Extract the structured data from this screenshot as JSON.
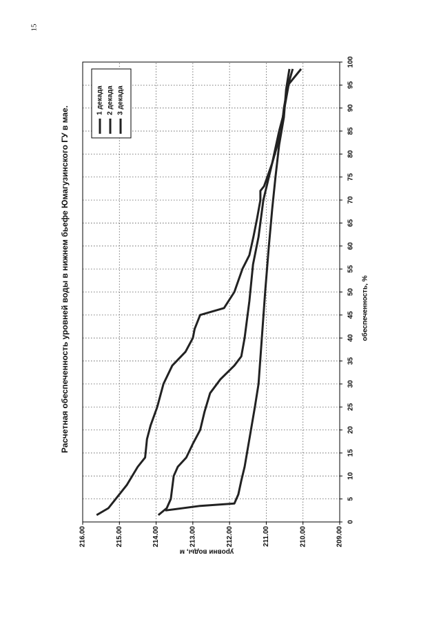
{
  "page_number": "15",
  "chart_data": {
    "type": "line",
    "title": "Расчетная обеспеченность уровней воды в нижнем бьефе Юмагузинского ГУ в мае.",
    "x_label": "обеспеченность, %",
    "y_label": "уровни воды, м",
    "xlim": [
      0,
      100
    ],
    "xticks": [
      0,
      5,
      10,
      15,
      20,
      25,
      30,
      35,
      40,
      45,
      50,
      55,
      60,
      65,
      70,
      75,
      80,
      85,
      90,
      95,
      100
    ],
    "ylim": [
      209,
      216
    ],
    "yticks": [
      {
        "value": 209,
        "label": "209.00"
      },
      {
        "value": 210,
        "label": "210.00"
      },
      {
        "value": 211,
        "label": "211.00"
      },
      {
        "value": 212,
        "label": "212.00"
      },
      {
        "value": 213,
        "label": "213.00"
      },
      {
        "value": 214,
        "label": "214.00"
      },
      {
        "value": 215,
        "label": "215.00"
      },
      {
        "value": 216,
        "label": "216.00"
      }
    ],
    "grid": true,
    "legend": "upper right",
    "series": [
      {
        "name": "1 декада",
        "color": "#222222",
        "x": [
          1.5,
          3,
          5,
          8,
          12,
          14,
          18,
          21,
          25,
          30,
          34,
          37,
          40,
          42,
          45,
          46.5,
          50,
          55,
          58,
          62,
          66,
          70,
          72,
          73,
          78,
          85,
          88,
          92,
          96,
          98.5
        ],
        "values": [
          215.62,
          215.3,
          215.1,
          214.8,
          214.5,
          214.3,
          214.25,
          214.15,
          213.97,
          213.8,
          213.56,
          213.2,
          213.0,
          212.95,
          212.8,
          212.15,
          211.87,
          211.65,
          211.46,
          211.35,
          211.25,
          211.16,
          211.16,
          211.06,
          210.84,
          210.65,
          210.55,
          210.46,
          210.37,
          210.28
        ]
      },
      {
        "name": "2 декада",
        "color": "#222222",
        "x": [
          1.5,
          3,
          5,
          10,
          12,
          14,
          17,
          20,
          24,
          28,
          31,
          34,
          36,
          40,
          48,
          56,
          62,
          70,
          78,
          85,
          90,
          95,
          98.5
        ],
        "values": [
          213.94,
          213.71,
          213.6,
          213.52,
          213.41,
          213.18,
          213.0,
          212.8,
          212.68,
          212.53,
          212.25,
          211.87,
          211.68,
          211.59,
          211.46,
          211.36,
          211.21,
          211.08,
          210.84,
          210.59,
          210.52,
          210.41,
          210.05
        ]
      },
      {
        "name": "3 декада",
        "color": "#222222",
        "x": [
          2.5,
          3.5,
          4,
          6,
          9,
          12,
          18,
          25,
          30,
          40,
          50,
          60,
          68,
          75,
          82,
          88,
          94,
          98.5
        ],
        "values": [
          213.75,
          212.8,
          211.87,
          211.76,
          211.68,
          211.59,
          211.46,
          211.31,
          211.21,
          211.12,
          211.03,
          210.93,
          210.84,
          210.75,
          210.65,
          210.52,
          210.46,
          210.37
        ]
      }
    ]
  }
}
